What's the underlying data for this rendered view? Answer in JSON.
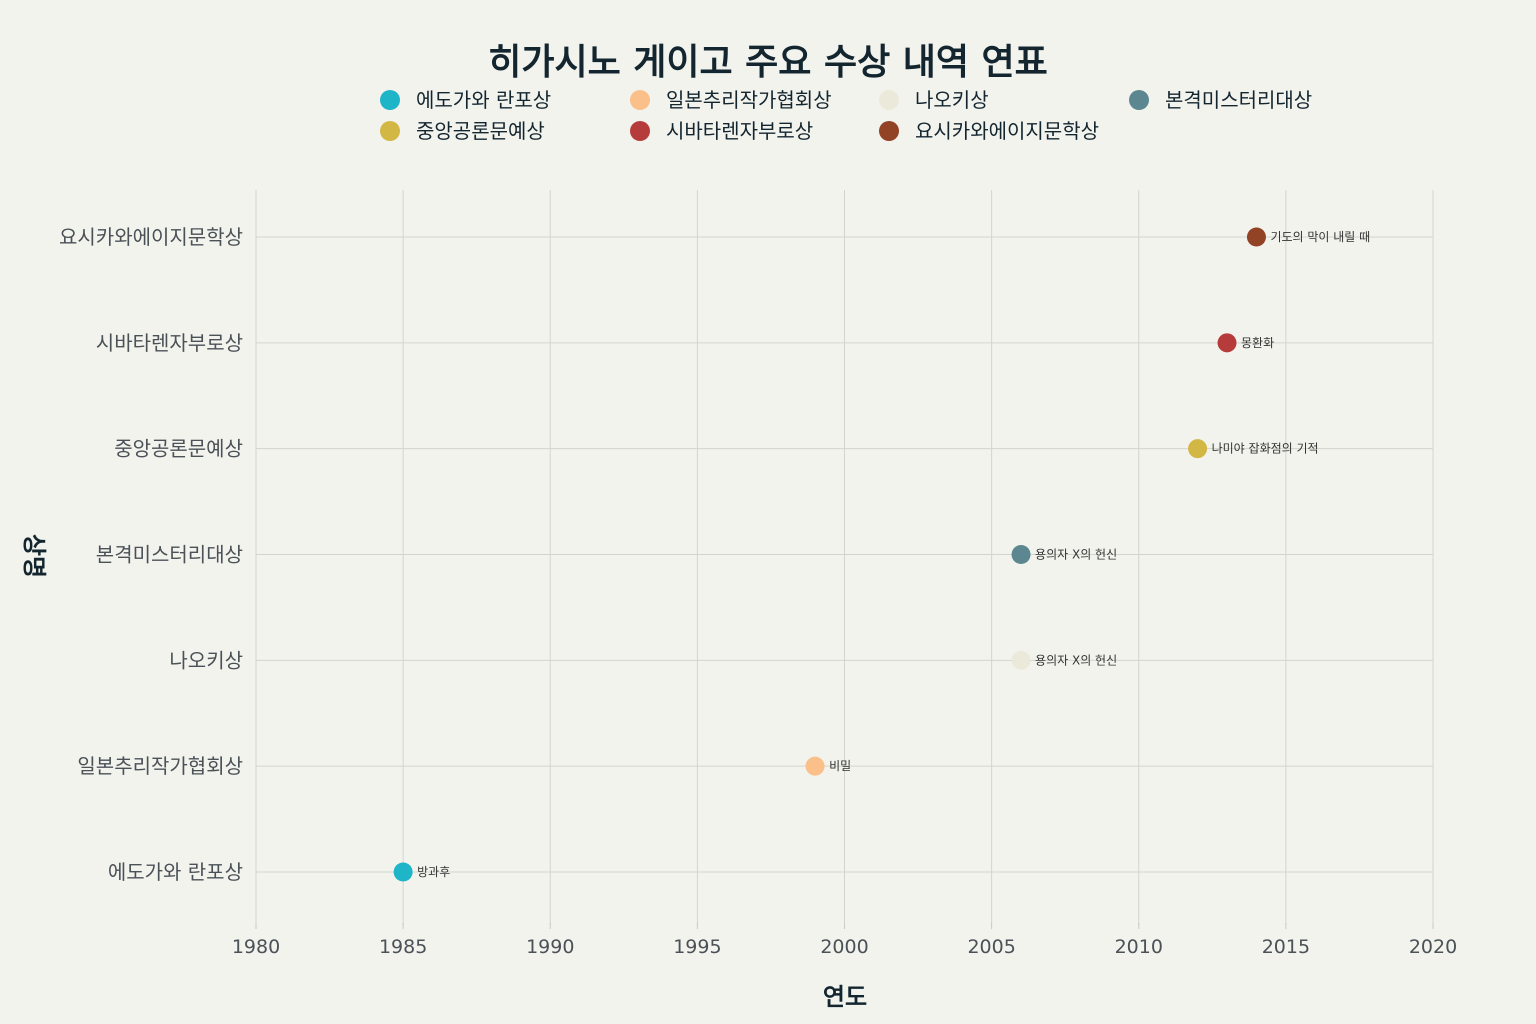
{
  "chart_data": {
    "type": "scatter",
    "title": "히가시노 게이고 주요 수상 내역 연표",
    "xlabel": "연도",
    "ylabel": "상명",
    "xlim": [
      1980,
      2020
    ],
    "xticks": [
      1980,
      1985,
      1990,
      1995,
      2000,
      2005,
      2010,
      2015,
      2020
    ],
    "categories": [
      "에도가와 란포상",
      "일본추리작가협회상",
      "나오키상",
      "본격미스터리대상",
      "중앙공론문예상",
      "시바타렌자부로상",
      "요시카와에이지문학상"
    ],
    "grid": true,
    "legend_position": "top",
    "series": [
      {
        "name": "에도가와 란포상",
        "color": "#1fb5c9",
        "points": [
          {
            "x": 1985,
            "y": "에도가와 란포상",
            "label": "방과후"
          }
        ]
      },
      {
        "name": "일본추리작가협회상",
        "color": "#fbbf8a",
        "points": [
          {
            "x": 1999,
            "y": "일본추리작가협회상",
            "label": "비밀"
          }
        ]
      },
      {
        "name": "나오키상",
        "color": "#ebeada",
        "points": [
          {
            "x": 2006,
            "y": "나오키상",
            "label": "용의자 X의 헌신"
          }
        ]
      },
      {
        "name": "본격미스터리대상",
        "color": "#5c8791",
        "points": [
          {
            "x": 2006,
            "y": "본격미스터리대상",
            "label": "용의자 X의 헌신"
          }
        ]
      },
      {
        "name": "중앙공론문예상",
        "color": "#d3b745",
        "points": [
          {
            "x": 2012,
            "y": "중앙공론문예상",
            "label": "나미야 잡화점의 기적"
          }
        ]
      },
      {
        "name": "시바타렌자부로상",
        "color": "#b63c3c",
        "points": [
          {
            "x": 2013,
            "y": "시바타렌자부로상",
            "label": "몽환화"
          }
        ]
      },
      {
        "name": "요시카와에이지문학상",
        "color": "#924225",
        "points": [
          {
            "x": 2014,
            "y": "요시카와에이지문학상",
            "label": "기도의 막이 내릴 때"
          }
        ]
      }
    ]
  }
}
